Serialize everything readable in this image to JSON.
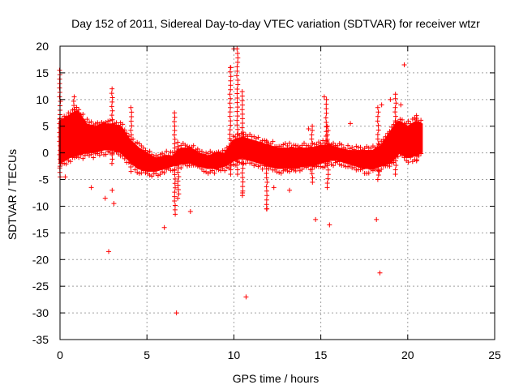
{
  "chart_data": {
    "type": "scatter",
    "title": "Day 152 of 2011, Sidereal Day-to-day VTEC variation (SDTVAR) for receiver wtzr",
    "xlabel": "GPS time / hours",
    "ylabel": "SDTVAR / TECUs",
    "xlim": [
      0,
      25
    ],
    "ylim": [
      -35,
      20
    ],
    "xticks": [
      0,
      5,
      10,
      15,
      20,
      25
    ],
    "yticks": [
      -35,
      -30,
      -25,
      -20,
      -15,
      -10,
      -5,
      0,
      5,
      10,
      15,
      20
    ],
    "grid": true,
    "marker": "+",
    "color": "#ff0000",
    "series": [
      {
        "name": "SDTVAR",
        "band_samples": {
          "x": [
            0.0,
            0.5,
            1.0,
            1.5,
            2.0,
            2.5,
            3.0,
            3.5,
            4.0,
            4.5,
            5.0,
            5.5,
            6.0,
            6.5,
            7.0,
            7.5,
            8.0,
            8.5,
            9.0,
            9.5,
            10.0,
            10.5,
            11.0,
            11.5,
            12.0,
            12.5,
            13.0,
            13.5,
            14.0,
            14.5,
            15.0,
            15.5,
            16.0,
            16.5,
            17.0,
            17.5,
            18.0,
            18.5,
            19.0,
            19.5,
            20.0,
            20.5,
            20.8
          ],
          "lo": [
            -2.0,
            -1.0,
            -0.5,
            0.0,
            0.0,
            0.5,
            0.5,
            0.0,
            -1.5,
            -3.0,
            -3.5,
            -3.5,
            -3.0,
            -2.5,
            -2.0,
            -2.0,
            -2.5,
            -3.0,
            -3.0,
            -2.5,
            -1.5,
            -1.0,
            -1.5,
            -2.0,
            -2.5,
            -3.0,
            -3.0,
            -3.0,
            -2.5,
            -2.5,
            -2.0,
            -1.5,
            -1.5,
            -2.0,
            -2.5,
            -3.0,
            -3.0,
            -2.5,
            -2.0,
            0.0,
            -1.0,
            -0.5,
            0.0
          ],
          "hi": [
            6.0,
            7.0,
            8.0,
            5.5,
            5.0,
            5.5,
            5.5,
            5.0,
            2.5,
            1.0,
            0.0,
            -1.0,
            -0.5,
            -0.5,
            1.0,
            1.0,
            0.0,
            -0.5,
            0.0,
            0.0,
            2.5,
            3.0,
            2.5,
            2.0,
            1.5,
            1.0,
            1.0,
            1.0,
            1.0,
            1.0,
            1.5,
            1.5,
            1.0,
            0.5,
            0.5,
            0.5,
            0.5,
            1.5,
            4.0,
            6.0,
            5.0,
            6.0,
            5.5
          ]
        },
        "spikes": [
          {
            "x": 0.0,
            "from": -4.5,
            "to": 15.5
          },
          {
            "x": 0.8,
            "from": 0.0,
            "to": 10.5
          },
          {
            "x": 3.0,
            "from": -2.0,
            "to": 12.0
          },
          {
            "x": 4.1,
            "from": -3.5,
            "to": 8.5
          },
          {
            "x": 6.6,
            "from": -11.5,
            "to": 7.5
          },
          {
            "x": 6.8,
            "from": -8.5,
            "to": 2.0
          },
          {
            "x": 9.8,
            "from": -4.0,
            "to": 16.0
          },
          {
            "x": 10.2,
            "from": -4.0,
            "to": 19.5
          },
          {
            "x": 10.5,
            "from": -8.0,
            "to": 11.5
          },
          {
            "x": 11.9,
            "from": -10.5,
            "to": 2.0
          },
          {
            "x": 14.5,
            "from": -5.5,
            "to": 5.0
          },
          {
            "x": 15.3,
            "from": -2.0,
            "to": 10.0
          },
          {
            "x": 15.4,
            "from": -6.5,
            "to": 5.0
          },
          {
            "x": 18.3,
            "from": -5.0,
            "to": 8.5
          },
          {
            "x": 19.3,
            "from": -4.0,
            "to": 11.0
          },
          {
            "x": 20.5,
            "from": -1.5,
            "to": 7.0
          }
        ],
        "outliers": {
          "x": [
            0.3,
            1.8,
            2.6,
            2.8,
            3.0,
            3.1,
            6.0,
            6.7,
            7.5,
            9.8,
            10.0,
            10.5,
            10.7,
            11.9,
            12.3,
            13.2,
            14.3,
            14.7,
            15.2,
            15.5,
            16.7,
            18.2,
            18.4,
            18.5,
            19.0,
            19.6,
            19.8
          ],
          "y": [
            -4.5,
            -6.5,
            -8.5,
            -18.5,
            -7.0,
            -9.5,
            -14.0,
            -30.0,
            -11.0,
            16.0,
            19.5,
            -7.5,
            -27.0,
            -10.5,
            -6.5,
            -7.0,
            4.5,
            -12.5,
            10.5,
            -13.5,
            5.5,
            -12.5,
            -22.5,
            9.0,
            10.0,
            9.0,
            16.5
          ]
        }
      }
    ]
  }
}
